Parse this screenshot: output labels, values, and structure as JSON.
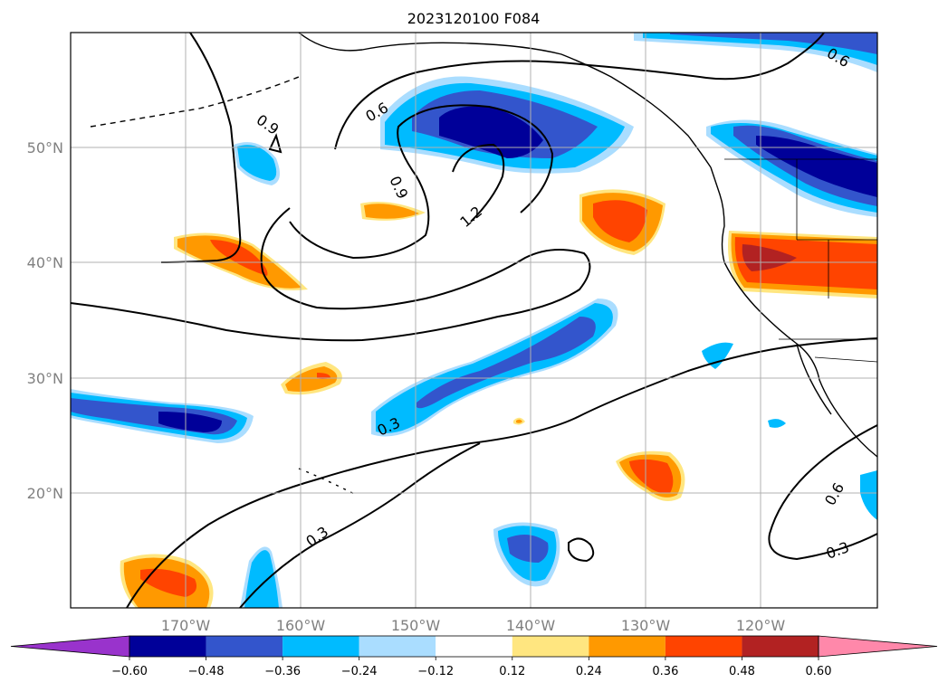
{
  "title": "2023120100 F084",
  "map": {
    "lon_labels": [
      "170°W",
      "160°W",
      "150°W",
      "140°W",
      "130°W",
      "120°W"
    ],
    "lat_labels": [
      "50°N",
      "40°N",
      "30°N",
      "20°N"
    ],
    "contour_labels": [
      "0.9",
      "0.6",
      "0.9",
      "1.2",
      "0.3",
      "0.3",
      "0.6",
      "0.3",
      "0.6"
    ]
  },
  "colorbar": {
    "labels": [
      "−0.60",
      "−0.48",
      "−0.36",
      "−0.24",
      "−0.12",
      "0.12",
      "0.24",
      "0.36",
      "0.48",
      "0.60"
    ],
    "colors": [
      "#9933cc",
      "#000099",
      "#3355cc",
      "#00bbff",
      "#aaddff",
      "#ffffff",
      "#ffe680",
      "#ff9900",
      "#ff4400",
      "#b22222",
      "#ff88aa"
    ]
  }
}
